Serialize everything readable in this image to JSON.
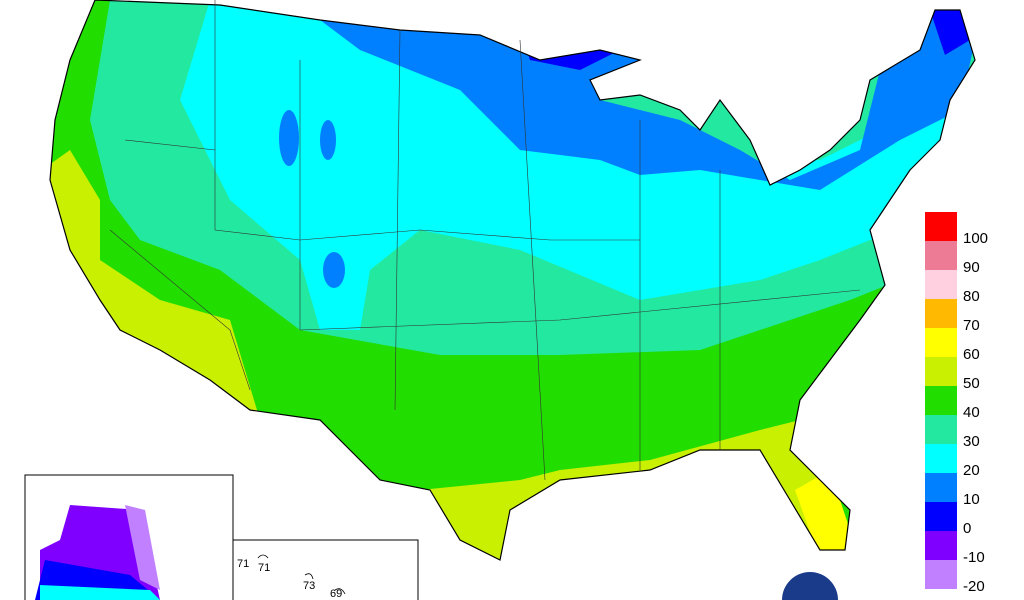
{
  "legend": {
    "entries": [
      {
        "label": 100,
        "color": "#ff0000"
      },
      {
        "label": 90,
        "color": "#ee7b96"
      },
      {
        "label": 80,
        "color": "#ffd0e0"
      },
      {
        "label": 70,
        "color": "#ffb900"
      },
      {
        "label": 60,
        "color": "#ffff00"
      },
      {
        "label": 50,
        "color": "#c8f000"
      },
      {
        "label": 40,
        "color": "#22dd00"
      },
      {
        "label": 30,
        "color": "#22e8a0"
      },
      {
        "label": 20,
        "color": "#00ffff"
      },
      {
        "label": 10,
        "color": "#0080ff"
      },
      {
        "label": 0,
        "color": "#0000ff"
      },
      {
        "label": -10,
        "color": "#8000ff"
      },
      {
        "label": -20,
        "color": "#c080ff"
      }
    ]
  },
  "hawaii": {
    "labels": [
      71,
      71,
      73,
      69
    ]
  }
}
